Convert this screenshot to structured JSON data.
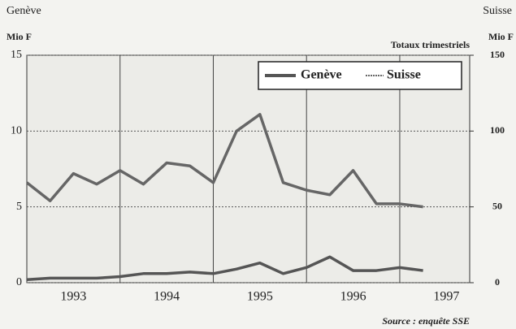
{
  "chart_data": {
    "type": "line",
    "left_title": "Genève",
    "left_unit": "Mio F",
    "right_title": "Suisse",
    "right_unit": "Mio F",
    "subtitle": "Totaux trimestriels",
    "source": "Source : enquête SSE",
    "x": [
      1993,
      1993.25,
      1993.5,
      1993.75,
      1994,
      1994.25,
      1994.5,
      1994.75,
      1995,
      1995.25,
      1995.5,
      1995.75,
      1996,
      1996.25,
      1996.5,
      1996.75,
      1997,
      1997.25
    ],
    "xlim": [
      1993,
      1997.75
    ],
    "xticks": [
      {
        "value": 1993.5,
        "label": "1993"
      },
      {
        "value": 1994.5,
        "label": "1994"
      },
      {
        "value": 1995.5,
        "label": "1995"
      },
      {
        "value": 1996.5,
        "label": "1996"
      },
      {
        "value": 1997.5,
        "label": "1997"
      }
    ],
    "xgrid": [
      1994,
      1995,
      1996,
      1997
    ],
    "ylim": [
      0,
      15
    ],
    "yticks": [
      0,
      5,
      10,
      15
    ],
    "y2lim": [
      0,
      150
    ],
    "y2ticks": [
      0,
      50,
      100,
      150
    ],
    "grid": true,
    "legend": "top right",
    "series": [
      {
        "name": "Genève",
        "color": "#555555",
        "values": [
          0.2,
          0.3,
          0.3,
          0.3,
          0.4,
          0.6,
          0.6,
          0.7,
          0.6,
          0.9,
          1.3,
          0.6,
          1.0,
          1.7,
          0.8,
          0.8,
          1.0,
          0.8
        ]
      },
      {
        "name": "Suisse",
        "color": "#666666",
        "axis": "y2",
        "values": [
          66,
          54,
          72,
          65,
          74,
          65,
          79,
          77,
          66,
          100,
          111,
          66,
          61,
          58,
          74,
          52,
          52,
          50
        ]
      }
    ]
  }
}
